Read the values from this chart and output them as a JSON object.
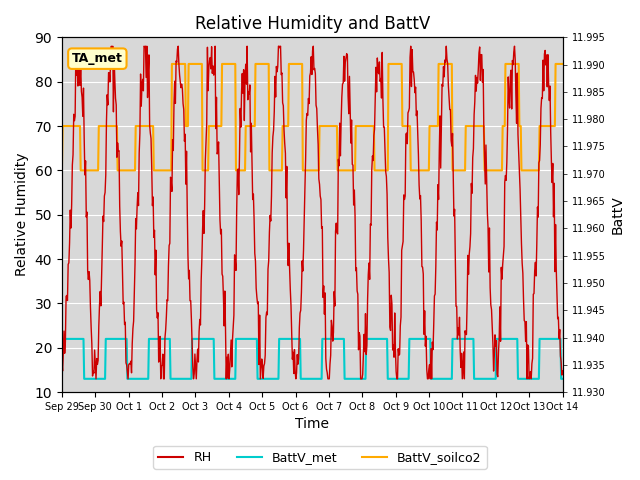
{
  "title": "Relative Humidity and BattV",
  "xlabel": "Time",
  "ylabel_left": "Relative Humidity",
  "ylabel_right": "BattV",
  "ylim_left": [
    10,
    90
  ],
  "ylim_right": [
    11.93,
    11.995
  ],
  "yticks_left": [
    10,
    20,
    30,
    40,
    50,
    60,
    70,
    80,
    90
  ],
  "yticks_right": [
    11.93,
    11.935,
    11.94,
    11.945,
    11.95,
    11.955,
    11.96,
    11.965,
    11.97,
    11.975,
    11.98,
    11.985,
    11.99,
    11.995
  ],
  "xtick_positions": [
    0,
    1,
    2,
    3,
    4,
    5,
    6,
    7,
    8,
    9,
    10,
    11,
    12,
    13,
    14,
    15
  ],
  "xtick_labels": [
    "Sep 29",
    "Sep 30",
    "Oct 1",
    "Oct 2",
    "Oct 3",
    "Oct 4",
    "Oct 5",
    "Oct 6",
    "Oct 7",
    "Oct 8",
    "Oct 9",
    "Oct 10",
    "Oct 11",
    "Oct 12",
    "Oct 13",
    "Oct 14"
  ],
  "color_RH": "#cc0000",
  "color_BattV_met": "#00cccc",
  "color_BattV_soilco2": "#ffaa00",
  "background_color": "#d8d8d8",
  "annotation_text": "TA_met",
  "annotation_color": "#ffaa00",
  "annotation_bg": "#ffffcc",
  "rh_seed": 42,
  "batt_met_high": 22,
  "batt_met_low": 13,
  "batt_soilco2_high": 70,
  "batt_soilco2_low": 60,
  "batt_soilco2_very_high": 84
}
